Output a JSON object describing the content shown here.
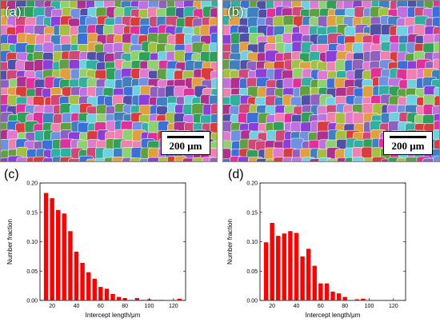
{
  "micrographs": [
    {
      "label": "(a)",
      "scale_bar": "200 μm"
    },
    {
      "label": "(b)",
      "scale_bar": "200 μm"
    }
  ],
  "chart_data": [
    {
      "type": "bar",
      "panel": "(c)",
      "xlabel": "Intercept length/μm",
      "ylabel": "Number fraction",
      "xlim": [
        10,
        130
      ],
      "ylim": [
        0,
        0.2
      ],
      "xticks": [
        20,
        40,
        60,
        80,
        100,
        120
      ],
      "yticks": [
        0.0,
        0.05,
        0.1,
        0.15,
        0.2
      ],
      "x": [
        15,
        20,
        25,
        30,
        35,
        40,
        45,
        50,
        55,
        60,
        65,
        70,
        75,
        80,
        85,
        90,
        95,
        100,
        105,
        110,
        115,
        120,
        125
      ],
      "values": [
        0.183,
        0.174,
        0.154,
        0.148,
        0.118,
        0.083,
        0.064,
        0.048,
        0.037,
        0.023,
        0.02,
        0.011,
        0.006,
        0.004,
        0.001,
        0.004,
        0.001,
        0.002,
        0.001,
        0.001,
        0,
        0,
        0.003
      ],
      "bar_color": "#ff0000"
    },
    {
      "type": "bar",
      "panel": "(d)",
      "xlabel": "Intercept length/μm",
      "ylabel": "Number fraction",
      "xlim": [
        10,
        130
      ],
      "ylim": [
        0,
        0.2
      ],
      "xticks": [
        20,
        40,
        60,
        80,
        100,
        120
      ],
      "yticks": [
        0.0,
        0.05,
        0.1,
        0.15,
        0.2
      ],
      "x": [
        15,
        20,
        25,
        30,
        35,
        40,
        45,
        50,
        55,
        60,
        65,
        70,
        75,
        80,
        85,
        90,
        95
      ],
      "values": [
        0.099,
        0.132,
        0.11,
        0.114,
        0.118,
        0.115,
        0.075,
        0.088,
        0.059,
        0.029,
        0.029,
        0.015,
        0.012,
        0.006,
        0,
        0.002,
        0.003
      ],
      "bar_color": "#ff0000"
    }
  ]
}
